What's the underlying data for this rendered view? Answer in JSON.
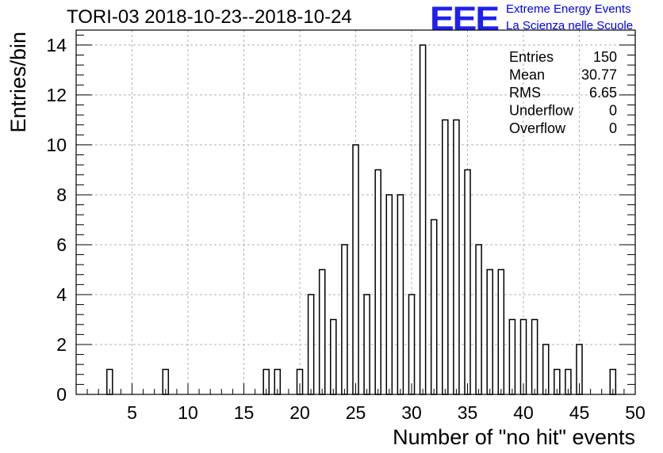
{
  "header": {
    "title": "TORI-03 2018-10-23--2018-10-24",
    "logo_text": "EEE",
    "logo_line1": "Extreme Energy Events",
    "logo_line2": "La Scienza nelle Scuole"
  },
  "stats_box": {
    "rows": [
      {
        "label": "Entries",
        "value": "150"
      },
      {
        "label": "Mean",
        "value": "30.77"
      },
      {
        "label": "RMS",
        "value": "6.65"
      },
      {
        "label": "Underflow",
        "value": "0"
      },
      {
        "label": "Overflow",
        "value": "0"
      }
    ]
  },
  "colors": {
    "bar_stroke": "#000000",
    "grid": "#b0b0b0",
    "logo": "#1f1ff0"
  },
  "chart_data": {
    "type": "bar",
    "xlabel": "Number of \"no hit\" events",
    "ylabel": "Entries/bin",
    "xlim": [
      0,
      50
    ],
    "ylim": [
      0,
      14.6
    ],
    "x_ticks": [
      5,
      10,
      15,
      20,
      25,
      30,
      35,
      40,
      45,
      50
    ],
    "y_ticks": [
      0,
      2,
      4,
      6,
      8,
      10,
      12,
      14
    ],
    "grid": true,
    "bins": [
      {
        "x": 3,
        "count": 1
      },
      {
        "x": 8,
        "count": 1
      },
      {
        "x": 17,
        "count": 1
      },
      {
        "x": 18,
        "count": 1
      },
      {
        "x": 20,
        "count": 1
      },
      {
        "x": 21,
        "count": 4
      },
      {
        "x": 22,
        "count": 5
      },
      {
        "x": 23,
        "count": 3
      },
      {
        "x": 24,
        "count": 6
      },
      {
        "x": 25,
        "count": 10
      },
      {
        "x": 26,
        "count": 4
      },
      {
        "x": 27,
        "count": 9
      },
      {
        "x": 28,
        "count": 8
      },
      {
        "x": 29,
        "count": 8
      },
      {
        "x": 30,
        "count": 4
      },
      {
        "x": 31,
        "count": 14
      },
      {
        "x": 32,
        "count": 7
      },
      {
        "x": 33,
        "count": 11
      },
      {
        "x": 34,
        "count": 11
      },
      {
        "x": 35,
        "count": 9
      },
      {
        "x": 36,
        "count": 6
      },
      {
        "x": 37,
        "count": 5
      },
      {
        "x": 38,
        "count": 5
      },
      {
        "x": 39,
        "count": 3
      },
      {
        "x": 40,
        "count": 3
      },
      {
        "x": 41,
        "count": 3
      },
      {
        "x": 42,
        "count": 2
      },
      {
        "x": 43,
        "count": 1
      },
      {
        "x": 44,
        "count": 1
      },
      {
        "x": 45,
        "count": 2
      },
      {
        "x": 48,
        "count": 1
      }
    ]
  }
}
